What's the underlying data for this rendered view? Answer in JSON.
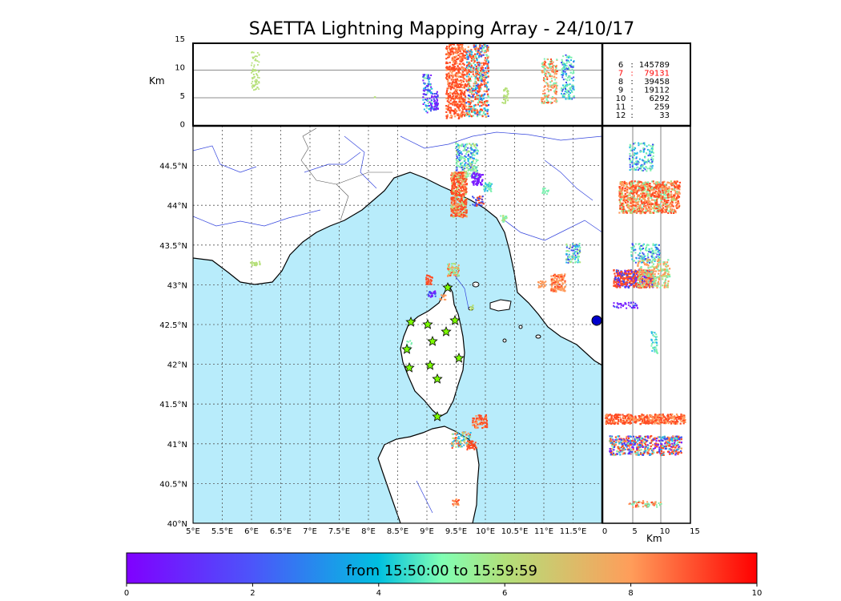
{
  "title": "SAETTA Lightning Mapping Array - 24/10/17",
  "altitude_panel": {
    "unit": "Km",
    "y_ticks": [
      "15",
      "10",
      "5",
      "0"
    ],
    "legend": [
      {
        "key": "6",
        "count": "145789",
        "highlight": false
      },
      {
        "key": "7",
        "count": "79131",
        "highlight": true
      },
      {
        "key": "8",
        "count": "39458",
        "highlight": false
      },
      {
        "key": "9",
        "count": "19112",
        "highlight": false
      },
      {
        "key": "10",
        "count": "6292",
        "highlight": false
      },
      {
        "key": "11",
        "count": "259",
        "highlight": false
      },
      {
        "key": "12",
        "count": "33",
        "highlight": false
      }
    ]
  },
  "map": {
    "lat_ticks": [
      "44.5°N",
      "44°N",
      "43.5°N",
      "43°N",
      "42.5°N",
      "42°N",
      "41.5°N",
      "41°N",
      "40.5°N",
      "40°N"
    ],
    "lon_ticks": [
      "5°E",
      "5.5°E",
      "6°E",
      "6.5°E",
      "7°E",
      "7.5°E",
      "8°E",
      "8.5°E",
      "9°E",
      "9.5°E",
      "10°E",
      "10.5°E",
      "11°E",
      "11.5°E"
    ],
    "extent": {
      "lon": [
        5,
        12
      ],
      "lat": [
        40,
        45
      ]
    },
    "sea_color": "#b8ecfb",
    "stations_color": "#7cfc00"
  },
  "side_panel": {
    "unit": "Km",
    "x_ticks": [
      "0",
      "5",
      "10",
      "15"
    ]
  },
  "colorbar": {
    "label": "from 15:50:00 to 15:59:59",
    "ticks": [
      "0",
      "2",
      "4",
      "6",
      "8",
      "10"
    ],
    "colormap": "rainbow"
  }
}
